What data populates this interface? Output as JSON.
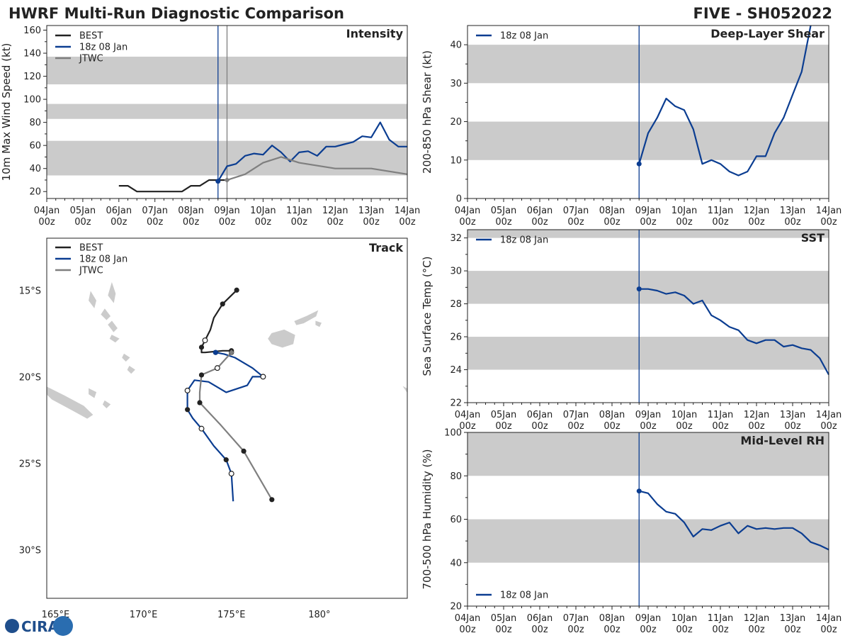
{
  "title_left": "HWRF Multi-Run Diagnostic Comparison",
  "title_right": "FIVE - SH052022",
  "logo_text": "CIRA",
  "colors": {
    "best": "#222222",
    "run": "#0b3d91",
    "jtwc": "#7f7f7f",
    "band": "#cbcbcb",
    "axis": "#222222"
  },
  "time_ticks": [
    {
      "top": "04Jan",
      "bottom": "00z"
    },
    {
      "top": "05Jan",
      "bottom": "00z"
    },
    {
      "top": "06Jan",
      "bottom": "00z"
    },
    {
      "top": "07Jan",
      "bottom": "00z"
    },
    {
      "top": "08Jan",
      "bottom": "00z"
    },
    {
      "top": "09Jan",
      "bottom": "00z"
    },
    {
      "top": "10Jan",
      "bottom": "00z"
    },
    {
      "top": "11Jan",
      "bottom": "00z"
    },
    {
      "top": "12Jan",
      "bottom": "00z"
    },
    {
      "top": "13Jan",
      "bottom": "00z"
    },
    {
      "top": "14Jan",
      "bottom": "00z"
    }
  ],
  "chart_data": [
    {
      "id": "intensity",
      "type": "line",
      "title": "Intensity",
      "ylabel": "10m Max Wind Speed (kt)",
      "xlim_days": [
        0,
        10
      ],
      "ylim": [
        14,
        164
      ],
      "yticks": [
        20,
        40,
        60,
        80,
        100,
        120,
        140,
        160
      ],
      "bands": [
        [
          34,
          64
        ],
        [
          83,
          96
        ],
        [
          113,
          137
        ]
      ],
      "vlines": [
        {
          "day": 4.75,
          "series": "run"
        },
        {
          "day": 5.0,
          "series": "jtwc"
        }
      ],
      "legend": [
        "BEST",
        "18z 08 Jan",
        "JTWC"
      ],
      "series": [
        {
          "name": "BEST",
          "key": "best",
          "x": [
            2.0,
            2.25,
            2.5,
            2.75,
            3.0,
            3.25,
            3.5,
            3.75,
            4.0,
            4.25,
            4.5,
            4.75,
            5.0
          ],
          "y": [
            25,
            25,
            20,
            20,
            20,
            20,
            20,
            20,
            25,
            25,
            30,
            30,
            30
          ]
        },
        {
          "name": "18z 08 Jan",
          "key": "run",
          "x": [
            4.75,
            5.0,
            5.25,
            5.5,
            5.75,
            6.0,
            6.25,
            6.5,
            6.75,
            7.0,
            7.25,
            7.5,
            7.75,
            8.0,
            8.25,
            8.5,
            8.75,
            9.0,
            9.25,
            9.5,
            9.75,
            10.0
          ],
          "y": [
            29,
            42,
            44,
            51,
            53,
            52,
            60,
            54,
            46,
            54,
            55,
            51,
            59,
            59,
            61,
            63,
            68,
            67,
            80,
            65,
            59,
            59
          ]
        },
        {
          "name": "JTWC",
          "key": "jtwc",
          "x": [
            5.0,
            5.5,
            6.0,
            6.5,
            7.0,
            8.0,
            9.0,
            10.0
          ],
          "y": [
            30,
            35,
            45,
            50,
            45,
            40,
            40,
            35
          ]
        }
      ],
      "markers": [
        {
          "series": "run",
          "x": 4.75,
          "y": 29
        },
        {
          "series": "jtwc",
          "x": 5.0,
          "y": 30
        }
      ]
    },
    {
      "id": "shear",
      "type": "line",
      "title": "Deep-Layer Shear",
      "ylabel": "200-850 hPa Shear (kt)",
      "xlim_days": [
        0,
        10
      ],
      "ylim": [
        0,
        45
      ],
      "yticks": [
        0,
        10,
        20,
        30,
        40
      ],
      "bands": [
        [
          10,
          20
        ],
        [
          30,
          40
        ]
      ],
      "vlines": [
        {
          "day": 4.75,
          "series": "run"
        }
      ],
      "legend": [
        "18z 08 Jan"
      ],
      "series": [
        {
          "name": "18z 08 Jan",
          "key": "run",
          "x": [
            4.75,
            5.0,
            5.25,
            5.5,
            5.75,
            6.0,
            6.25,
            6.5,
            6.75,
            7.0,
            7.25,
            7.5,
            7.75,
            8.0,
            8.25,
            8.5,
            8.75,
            9.0,
            9.25,
            9.5
          ],
          "y": [
            9,
            17,
            21,
            26,
            24,
            23,
            18,
            9,
            10,
            9,
            7,
            6,
            7,
            11,
            11,
            17,
            21,
            27,
            33,
            45
          ]
        }
      ],
      "markers": [
        {
          "series": "run",
          "x": 4.75,
          "y": 9
        }
      ]
    },
    {
      "id": "sst",
      "type": "line",
      "title": "SST",
      "ylabel": "Sea Surface Temp (°C)",
      "xlim_days": [
        0,
        10
      ],
      "ylim": [
        22,
        32.5
      ],
      "yticks": [
        22,
        24,
        26,
        28,
        30,
        32
      ],
      "bands": [
        [
          24,
          26
        ],
        [
          28,
          30
        ],
        [
          32,
          32.5
        ]
      ],
      "vlines": [
        {
          "day": 4.75,
          "series": "run"
        }
      ],
      "legend": [
        "18z 08 Jan"
      ],
      "series": [
        {
          "name": "18z 08 Jan",
          "key": "run",
          "x": [
            4.75,
            5.0,
            5.25,
            5.5,
            5.75,
            6.0,
            6.25,
            6.5,
            6.75,
            7.0,
            7.25,
            7.5,
            7.75,
            8.0,
            8.25,
            8.5,
            8.75,
            9.0,
            9.25,
            9.5,
            9.75,
            10.0
          ],
          "y": [
            28.9,
            28.9,
            28.8,
            28.6,
            28.7,
            28.5,
            28.0,
            28.2,
            27.3,
            27.0,
            26.6,
            26.4,
            25.8,
            25.6,
            25.8,
            25.8,
            25.4,
            25.5,
            25.3,
            25.2,
            24.7,
            23.7
          ]
        }
      ],
      "markers": [
        {
          "series": "run",
          "x": 4.75,
          "y": 28.9
        }
      ]
    },
    {
      "id": "rh",
      "type": "line",
      "title": "Mid-Level RH",
      "ylabel": "700-500 hPa Humidity (%)",
      "xlim_days": [
        0,
        10
      ],
      "ylim": [
        20,
        100
      ],
      "yticks": [
        20,
        40,
        60,
        80,
        100
      ],
      "bands": [
        [
          40,
          60
        ],
        [
          80,
          100
        ]
      ],
      "vlines": [
        {
          "day": 4.75,
          "series": "run"
        }
      ],
      "legend": [
        "18z 08 Jan"
      ],
      "series": [
        {
          "name": "18z 08 Jan",
          "key": "run",
          "x": [
            4.75,
            5.0,
            5.25,
            5.5,
            5.75,
            6.0,
            6.25,
            6.5,
            6.75,
            7.0,
            7.25,
            7.5,
            7.75,
            8.0,
            8.25,
            8.5,
            8.75,
            9.0,
            9.25,
            9.5,
            9.75,
            10.0
          ],
          "y": [
            73,
            72,
            67,
            63.5,
            62.5,
            58.5,
            52,
            55.5,
            55,
            57,
            58.5,
            53.5,
            57,
            55.5,
            56,
            55.5,
            56,
            56,
            53.5,
            49.5,
            48,
            46
          ]
        }
      ],
      "markers": [
        {
          "series": "run",
          "x": 4.75,
          "y": 73
        }
      ]
    },
    {
      "id": "track",
      "type": "scatter",
      "title": "Track",
      "lon_range": [
        164.5,
        185.0
      ],
      "lat_range": [
        -32.8,
        -12.0
      ],
      "lon_ticks": [
        {
          "v": 165,
          "label": "165°E"
        },
        {
          "v": 170,
          "label": "170°E"
        },
        {
          "v": 175,
          "label": "175°E"
        },
        {
          "v": 180,
          "label": "180°"
        }
      ],
      "lat_ticks": [
        {
          "v": -15,
          "label": "15°S"
        },
        {
          "v": -20,
          "label": "20°S"
        },
        {
          "v": -25,
          "label": "25°S"
        },
        {
          "v": -30,
          "label": "30°S"
        }
      ],
      "legend": [
        "BEST",
        "18z 08 Jan",
        "JTWC"
      ],
      "series": [
        {
          "name": "BEST",
          "key": "best",
          "lon": [
            175.3,
            174.5,
            174.0,
            173.8,
            173.5,
            173.3,
            173.3,
            173.5,
            174.5,
            175.0,
            175.0
          ],
          "lat": [
            -15.0,
            -15.8,
            -16.6,
            -17.3,
            -17.9,
            -18.3,
            -18.6,
            -18.6,
            -18.5,
            -18.5,
            -18.6
          ],
          "filled": [
            0,
            1,
            5,
            9,
            10
          ],
          "hollow": [
            4
          ]
        },
        {
          "name": "18z 08 Jan",
          "key": "run",
          "lon": [
            174.1,
            174.6,
            175.2,
            176.2,
            176.8,
            176.2,
            175.9,
            174.7,
            173.7,
            172.9,
            172.5,
            172.5,
            172.8,
            173.3,
            174.0,
            174.7,
            175.0,
            175.1
          ],
          "lat": [
            -18.6,
            -18.7,
            -18.9,
            -19.5,
            -20.0,
            -20.0,
            -20.5,
            -20.9,
            -20.3,
            -20.2,
            -20.8,
            -21.9,
            -22.4,
            -23.0,
            -24.0,
            -24.8,
            -25.6,
            -27.2
          ],
          "filled": [
            0,
            11,
            15
          ],
          "hollow": [
            4,
            10,
            13,
            16
          ]
        },
        {
          "name": "JTWC",
          "key": "jtwc",
          "lon": [
            175.0,
            174.2,
            173.3,
            173.2,
            173.2,
            174.4,
            175.7,
            177.3
          ],
          "lat": [
            -18.6,
            -19.5,
            -19.9,
            -20.9,
            -21.5,
            -22.8,
            -24.3,
            -27.1
          ],
          "filled": [
            0,
            2,
            4,
            6,
            7
          ],
          "hollow": [
            1
          ]
        }
      ],
      "markers": [
        {
          "series": "run",
          "lon": 174.1,
          "lat": -18.6,
          "style": "filled"
        },
        {
          "series": "jtwc",
          "lon": 175.0,
          "lat": -18.6,
          "style": "diamond"
        }
      ]
    }
  ]
}
